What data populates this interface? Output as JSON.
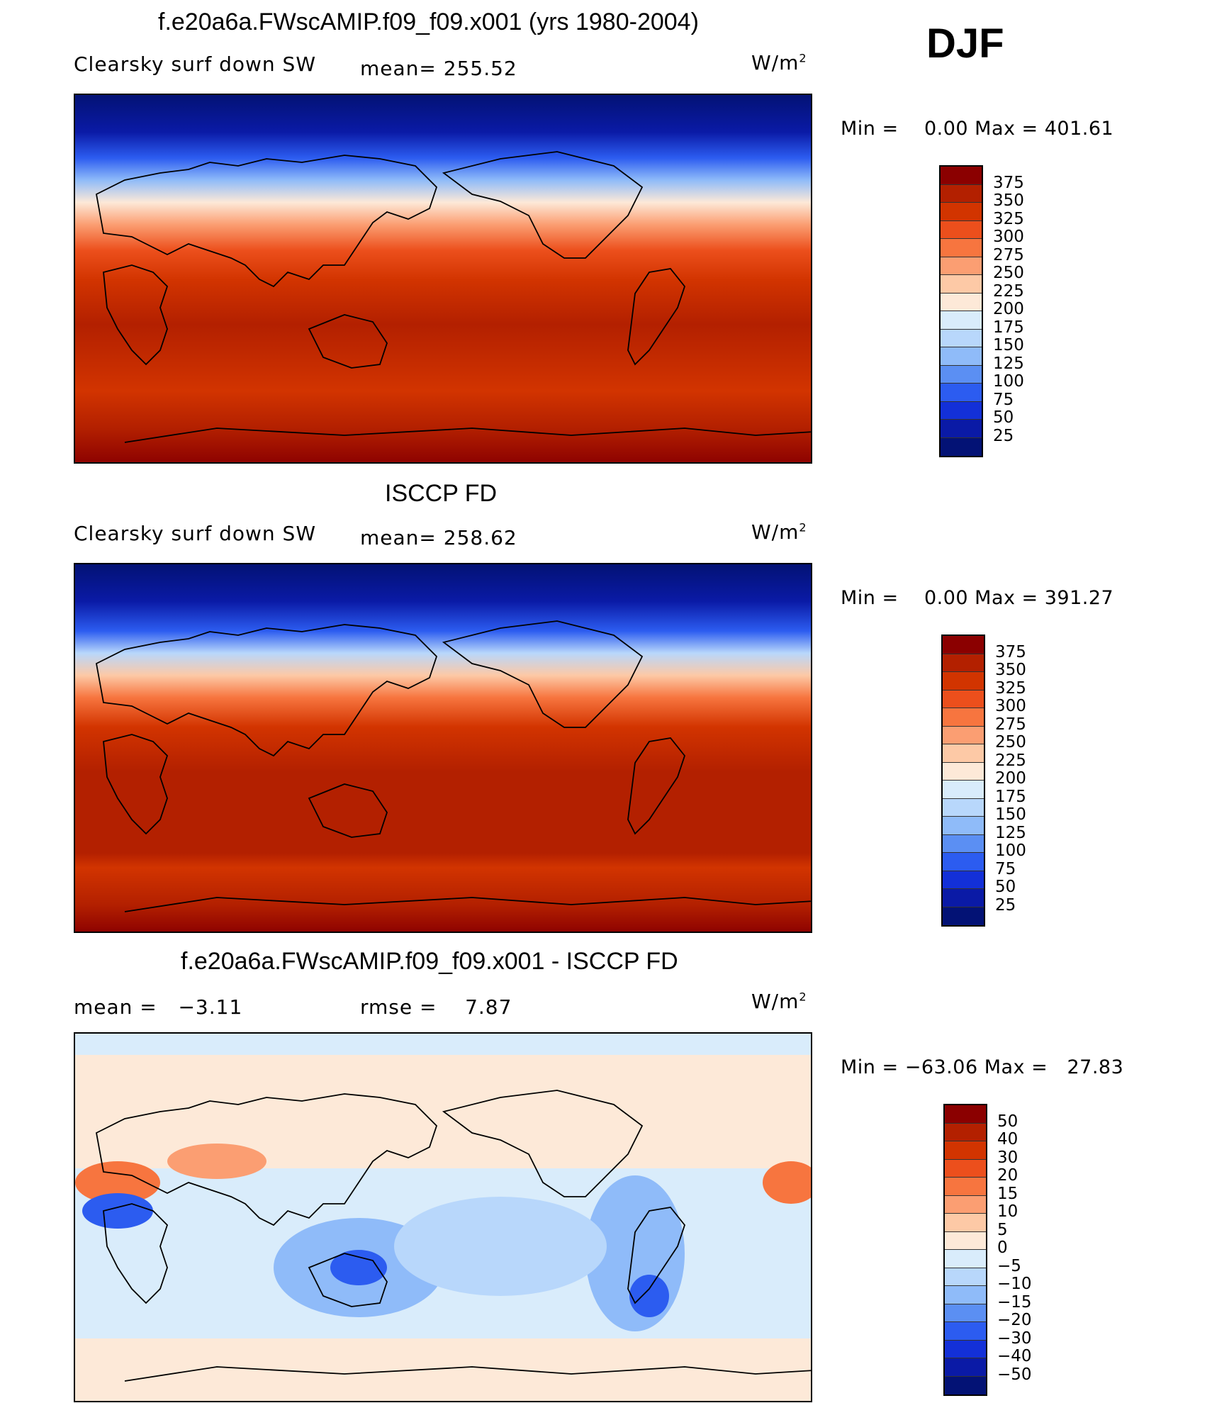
{
  "season": "DJF",
  "panels": [
    {
      "id": "model",
      "title": "f.e20a6a.FWscAMIP.f09_f09.x001 (yrs 1980-2004)",
      "left_label": "Clearsky surf down SW",
      "center_label": "mean= 255.52",
      "units": "W/m",
      "units_sup": "2",
      "minmax": "Min =    0.00 Max = 401.61",
      "levels": [
        "375",
        "350",
        "325",
        "300",
        "275",
        "250",
        "225",
        "200",
        "175",
        "150",
        "125",
        "100",
        "75",
        "50",
        "25"
      ],
      "colors": [
        "#8b0000",
        "#b32000",
        "#d23400",
        "#ec4f1c",
        "#f7753f",
        "#fb9e72",
        "#fdc9a6",
        "#fde9d8",
        "#d9ecfb",
        "#b8d7fb",
        "#8fbbf9",
        "#5b8ff3",
        "#2c5cf0",
        "#1330d8",
        "#0a1aa6",
        "#031275"
      ]
    },
    {
      "id": "obs",
      "title": "ISCCP FD",
      "left_label": "Clearsky surf down SW",
      "center_label": "mean= 258.62",
      "units": "W/m",
      "units_sup": "2",
      "minmax": "Min =    0.00 Max = 391.27",
      "levels": [
        "375",
        "350",
        "325",
        "300",
        "275",
        "250",
        "225",
        "200",
        "175",
        "150",
        "125",
        "100",
        "75",
        "50",
        "25"
      ],
      "colors": [
        "#8b0000",
        "#b32000",
        "#d23400",
        "#ec4f1c",
        "#f7753f",
        "#fb9e72",
        "#fdc9a6",
        "#fde9d8",
        "#d9ecfb",
        "#b8d7fb",
        "#8fbbf9",
        "#5b8ff3",
        "#2c5cf0",
        "#1330d8",
        "#0a1aa6",
        "#031275"
      ]
    },
    {
      "id": "diff",
      "title": "f.e20a6a.FWscAMIP.f09_f09.x001 - ISCCP FD",
      "left_label": "mean =   −3.11",
      "center_label": "rmse =    7.87",
      "units": "W/m",
      "units_sup": "2",
      "minmax": "Min = −63.06 Max =   27.83",
      "levels": [
        "50",
        "40",
        "30",
        "20",
        "15",
        "10",
        "5",
        "0",
        "−5",
        "−10",
        "−15",
        "−20",
        "−30",
        "−40",
        "−50"
      ],
      "colors": [
        "#8b0000",
        "#b32000",
        "#d23400",
        "#ec4f1c",
        "#f7753f",
        "#fb9e72",
        "#fdc9a6",
        "#fde9d8",
        "#d9ecfb",
        "#b8d7fb",
        "#8fbbf9",
        "#5b8ff3",
        "#2c5cf0",
        "#1330d8",
        "#0a1aa6",
        "#031275"
      ]
    }
  ],
  "chart_data": [
    {
      "type": "heatmap",
      "title": "f.e20a6a.FWscAMIP.f09_f09.x001 (yrs 1980-2004)",
      "variable": "Clearsky surf down SW",
      "mean": 255.52,
      "min": 0.0,
      "max": 401.61,
      "units": "W/m2",
      "contour_levels": [
        25,
        50,
        75,
        100,
        125,
        150,
        175,
        200,
        225,
        250,
        275,
        300,
        325,
        350,
        375
      ]
    },
    {
      "type": "heatmap",
      "title": "ISCCP FD",
      "variable": "Clearsky surf down SW",
      "mean": 258.62,
      "min": 0.0,
      "max": 391.27,
      "units": "W/m2",
      "contour_levels": [
        25,
        50,
        75,
        100,
        125,
        150,
        175,
        200,
        225,
        250,
        275,
        300,
        325,
        350,
        375
      ]
    },
    {
      "type": "heatmap",
      "title": "f.e20a6a.FWscAMIP.f09_f09.x001 - ISCCP FD",
      "mean": -3.11,
      "rmse": 7.87,
      "min": -63.06,
      "max": 27.83,
      "units": "W/m2",
      "contour_levels": [
        -50,
        -40,
        -30,
        -20,
        -15,
        -10,
        -5,
        0,
        5,
        10,
        15,
        20,
        30,
        40,
        50
      ]
    }
  ]
}
